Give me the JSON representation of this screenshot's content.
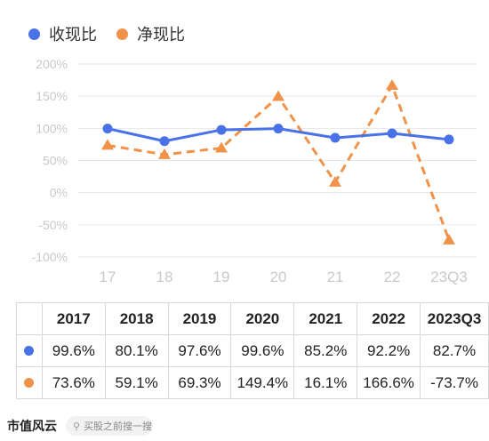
{
  "colors": {
    "series1": "#4a72e8",
    "series2": "#f0924a",
    "axis_text": "#c9c9c9",
    "grid": "#e6e6e6"
  },
  "chart_data": {
    "type": "line",
    "categories": [
      "17",
      "18",
      "19",
      "20",
      "21",
      "22",
      "23Q3"
    ],
    "ylim": [
      -100,
      200
    ],
    "yticks": [
      "200%",
      "150%",
      "100%",
      "50%",
      "0%",
      "-50%",
      "-100%"
    ],
    "ytick_values": [
      200,
      150,
      100,
      50,
      0,
      -50,
      -100
    ],
    "grid": true,
    "legend_position": "top-left",
    "series": [
      {
        "name": "收现比",
        "values": [
          99.6,
          80.1,
          97.6,
          99.6,
          85.2,
          92.2,
          82.7
        ],
        "style": "solid",
        "marker": "circle"
      },
      {
        "name": "净现比",
        "values": [
          73.6,
          59.1,
          69.3,
          149.4,
          16.1,
          166.6,
          -73.7
        ],
        "style": "dashed",
        "marker": "triangle"
      }
    ]
  },
  "table": {
    "headers": [
      "2017",
      "2018",
      "2019",
      "2020",
      "2021",
      "2022",
      "2023Q3"
    ],
    "rows": [
      [
        "99.6%",
        "80.1%",
        "97.6%",
        "99.6%",
        "85.2%",
        "92.2%",
        "82.7%"
      ],
      [
        "73.6%",
        "59.1%",
        "69.3%",
        "149.4%",
        "16.1%",
        "166.6%",
        "-73.7%"
      ]
    ]
  },
  "footer": {
    "brand": "市值风云",
    "search_placeholder": "买股之前搜一搜"
  }
}
